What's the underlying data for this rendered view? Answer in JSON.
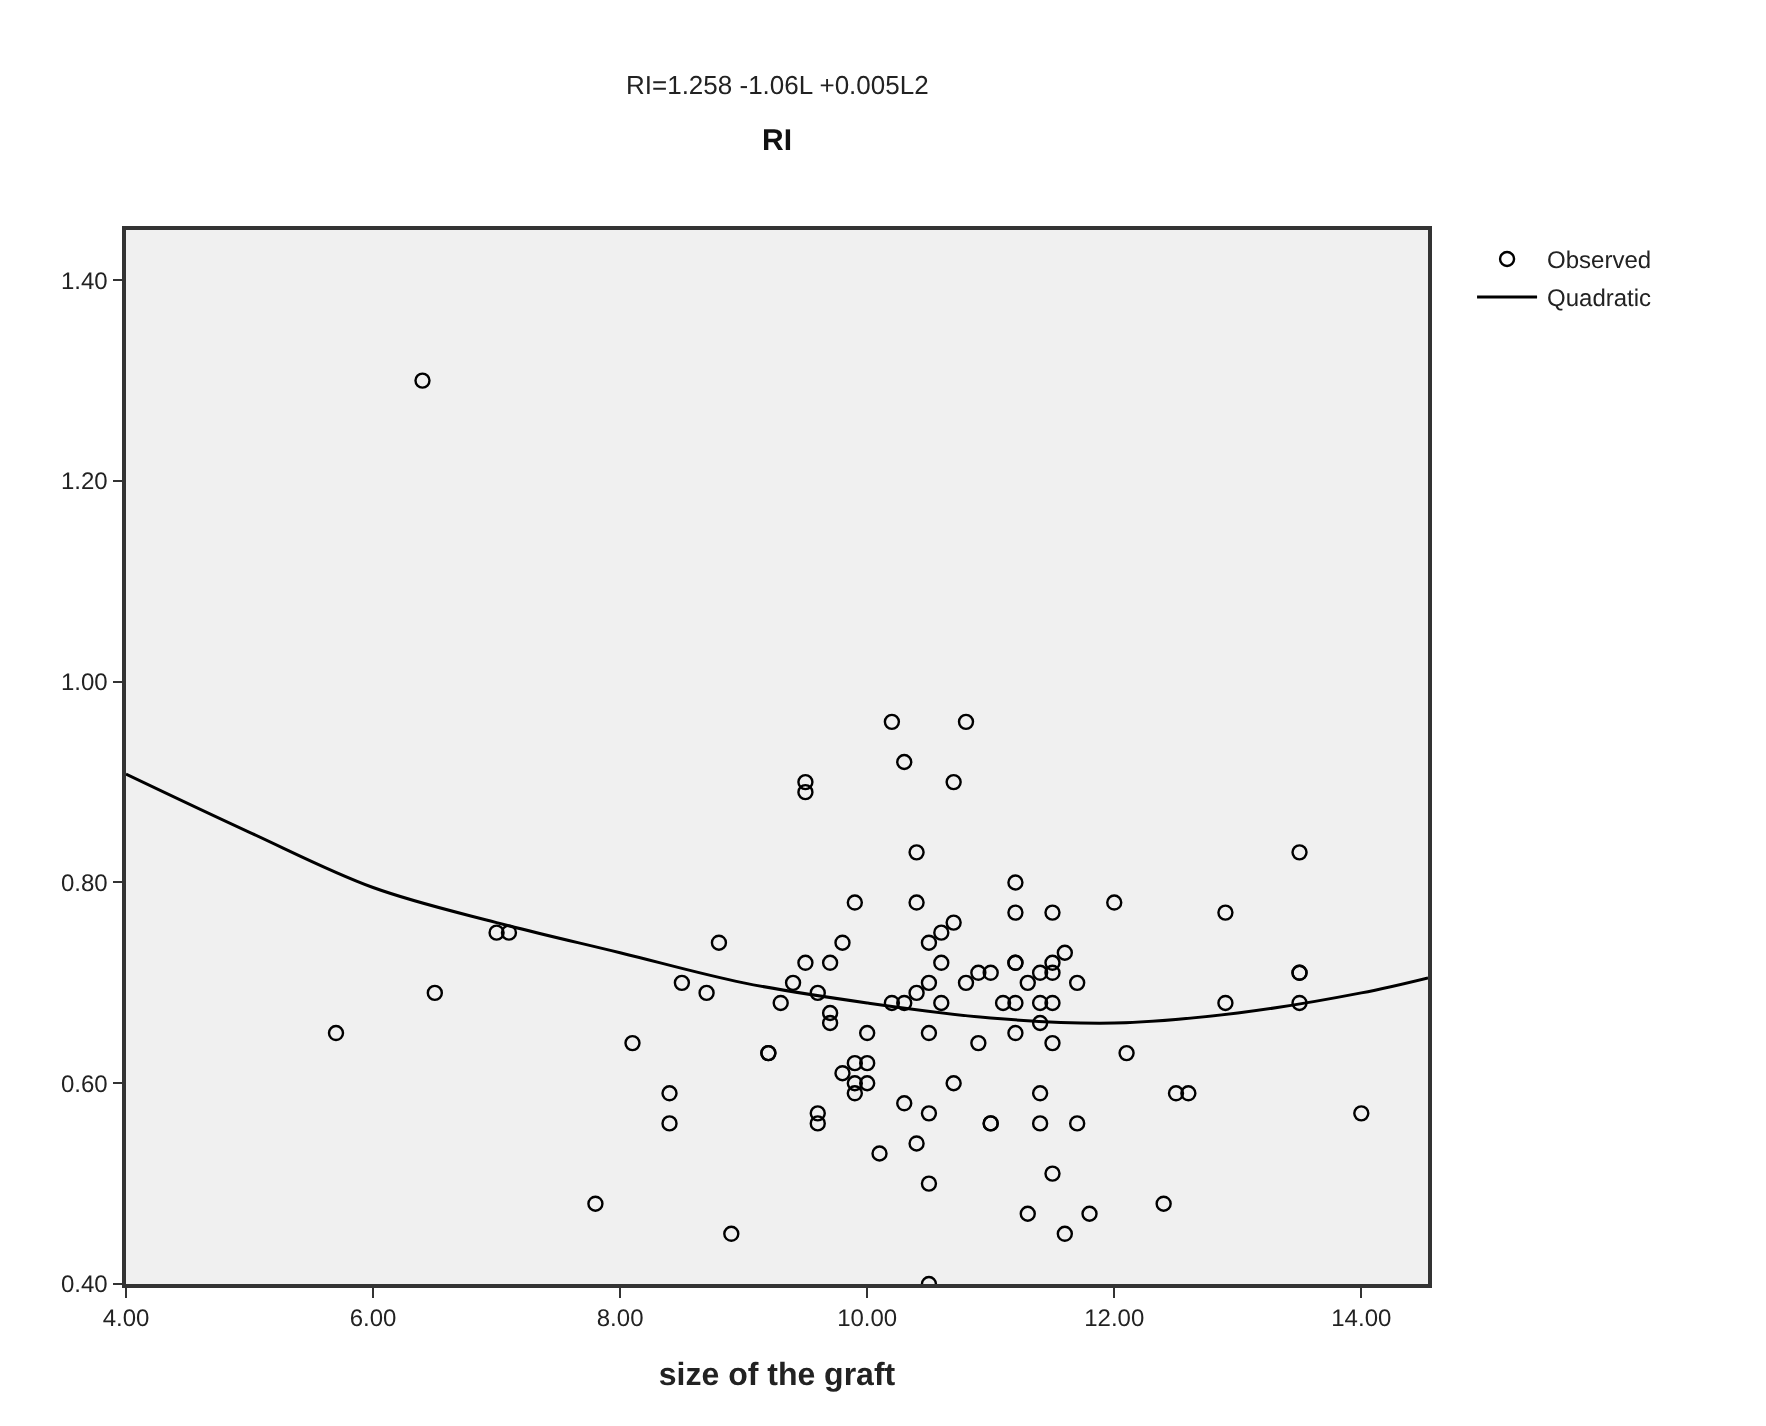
{
  "chart_data": {
    "type": "scatter",
    "title": "RI",
    "subtitle": "RI=1.258 -1.06L +0.005L2",
    "xlabel": "size of the graft",
    "xlim": [
      4,
      14.54
    ],
    "ylim": [
      0.4,
      1.45
    ],
    "xticks": [
      {
        "value": 4,
        "label": "4.00"
      },
      {
        "value": 6,
        "label": "6.00"
      },
      {
        "value": 8,
        "label": "8.00"
      },
      {
        "value": 10,
        "label": "10.00"
      },
      {
        "value": 12,
        "label": "12.00"
      },
      {
        "value": 14,
        "label": "14.00"
      }
    ],
    "yticks": [
      {
        "value": 0.4,
        "label": "0.40"
      },
      {
        "value": 0.6,
        "label": "0.60"
      },
      {
        "value": 0.8,
        "label": "0.80"
      },
      {
        "value": 1.0,
        "label": "1.00"
      },
      {
        "value": 1.2,
        "label": "1.20"
      },
      {
        "value": 1.4,
        "label": "1.40"
      }
    ],
    "grid": false,
    "legend": "top right",
    "marker": "circle",
    "series": [
      {
        "name": "Observed",
        "type": "scatter",
        "color": "#000000",
        "x": [
          5.7,
          6.4,
          6.5,
          7.0,
          7.1,
          7.8,
          8.1,
          8.4,
          8.4,
          8.5,
          8.7,
          8.8,
          8.9,
          9.2,
          9.2,
          9.3,
          9.4,
          9.5,
          9.5,
          9.5,
          9.6,
          9.6,
          9.6,
          9.7,
          9.7,
          9.7,
          9.8,
          9.8,
          9.9,
          9.9,
          9.9,
          9.9,
          10.0,
          10.0,
          10.0,
          10.1,
          10.2,
          10.2,
          10.3,
          10.3,
          10.3,
          10.4,
          10.4,
          10.4,
          10.4,
          10.5,
          10.5,
          10.5,
          10.5,
          10.5,
          10.5,
          10.6,
          10.6,
          10.6,
          10.7,
          10.7,
          10.7,
          10.8,
          10.8,
          10.9,
          10.9,
          11.0,
          11.0,
          11.0,
          11.1,
          11.2,
          11.2,
          11.2,
          11.2,
          11.2,
          11.2,
          11.3,
          11.3,
          11.4,
          11.4,
          11.4,
          11.4,
          11.4,
          11.5,
          11.5,
          11.5,
          11.5,
          11.5,
          11.5,
          11.6,
          11.6,
          11.7,
          11.7,
          11.8,
          12.0,
          12.1,
          12.4,
          12.5,
          12.6,
          12.9,
          12.9,
          13.5,
          13.5,
          13.5,
          13.5,
          14.0
        ],
        "values": [
          0.65,
          1.3,
          0.69,
          0.75,
          0.75,
          0.48,
          0.64,
          0.59,
          0.56,
          0.7,
          0.69,
          0.74,
          0.45,
          0.63,
          0.63,
          0.68,
          0.7,
          0.72,
          0.9,
          0.89,
          0.69,
          0.57,
          0.56,
          0.72,
          0.67,
          0.66,
          0.74,
          0.61,
          0.78,
          0.62,
          0.6,
          0.59,
          0.62,
          0.6,
          0.65,
          0.53,
          0.96,
          0.68,
          0.92,
          0.68,
          0.58,
          0.83,
          0.78,
          0.69,
          0.54,
          0.7,
          0.74,
          0.65,
          0.57,
          0.5,
          0.4,
          0.75,
          0.72,
          0.68,
          0.9,
          0.76,
          0.6,
          0.96,
          0.7,
          0.71,
          0.64,
          0.71,
          0.56,
          0.56,
          0.68,
          0.8,
          0.77,
          0.72,
          0.72,
          0.68,
          0.65,
          0.7,
          0.47,
          0.71,
          0.68,
          0.66,
          0.59,
          0.56,
          0.77,
          0.72,
          0.71,
          0.68,
          0.64,
          0.51,
          0.73,
          0.45,
          0.7,
          0.56,
          0.47,
          0.78,
          0.63,
          0.48,
          0.59,
          0.59,
          0.77,
          0.68,
          0.83,
          0.71,
          0.71,
          0.68,
          0.57
        ]
      },
      {
        "name": "Quadratic",
        "type": "line",
        "color": "#000000",
        "line_style": "solid",
        "marker": "none",
        "x": [
          4,
          5,
          6,
          7,
          8,
          9,
          10,
          11,
          12,
          13,
          14,
          14.54
        ],
        "values": [
          0.908,
          0.85,
          0.795,
          0.76,
          0.73,
          0.7,
          0.68,
          0.665,
          0.66,
          0.67,
          0.69,
          0.705
        ]
      }
    ]
  }
}
